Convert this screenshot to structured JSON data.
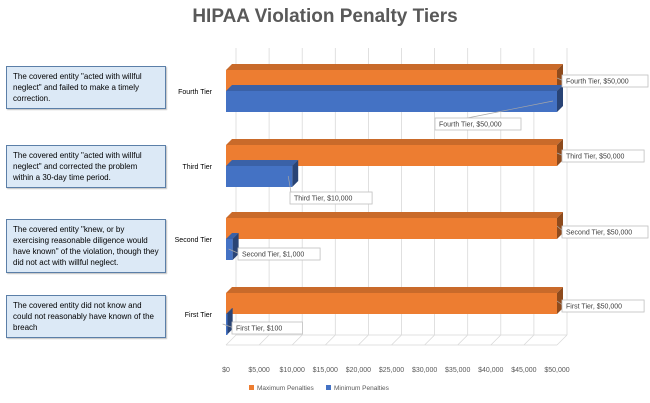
{
  "chart_data": {
    "type": "bar",
    "orientation": "horizontal",
    "title": "HIPAA Violation Penalty Tiers",
    "categories": [
      "Fourth Tier",
      "Third Tier",
      "Second Tier",
      "First Tier"
    ],
    "series": [
      {
        "name": "Maximum Penalties",
        "color": "#ed7d31",
        "values": [
          50000,
          50000,
          50000,
          50000
        ],
        "labels": [
          "Fourth Tier, $50,000",
          "Third Tier, $50,000",
          "Second Tier, $50,000",
          "First Tier, $50,000"
        ]
      },
      {
        "name": "Minimum Penalties",
        "color": "#4472c4",
        "values": [
          50000,
          10000,
          1000,
          100
        ],
        "labels": [
          "Fourth Tier, $50,000",
          "Third Tier, $10,000",
          "Second Tier, $1,000",
          "First Tier, $100"
        ]
      }
    ],
    "xlim": [
      0,
      50000
    ],
    "x_ticks": [
      "$0",
      "$5,000",
      "$10,000",
      "$15,000",
      "$20,000",
      "$25,000",
      "$30,000",
      "$35,000",
      "$40,000",
      "$45,000",
      "$50,000"
    ],
    "grid": true,
    "legend_position": "bottom",
    "descriptions": [
      "The covered entity \"acted with willful neglect\" and failed to make a timely correction.",
      "The covered entity \"acted with willful neglect\" and corrected the problem within a 30-day time period.",
      "The covered entity \"knew, or by exercising reasonable diligence would have known\" of the violation, though they did not act with willful neglect.",
      "The covered entity did not know and could not reasonably have known of the breach"
    ]
  }
}
